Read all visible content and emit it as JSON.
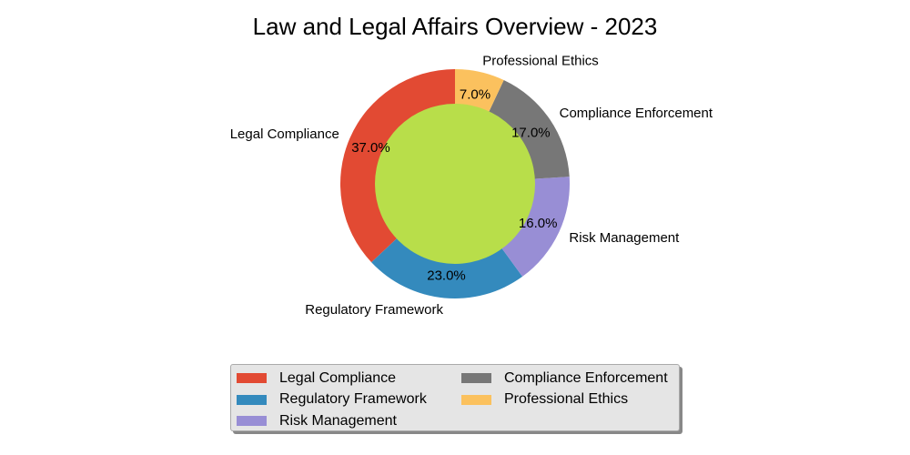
{
  "chart_data": {
    "type": "pie",
    "title": "Law and Legal Affairs Overview - 2023",
    "categories": [
      "Legal Compliance",
      "Regulatory Framework",
      "Risk Management",
      "Compliance Enforcement",
      "Professional Ethics"
    ],
    "values": [
      37.0,
      23.0,
      16.0,
      17.0,
      7.0
    ],
    "percent_labels": [
      "37.0%",
      "23.0%",
      "16.0%",
      "17.0%",
      "7.0%"
    ],
    "colors": [
      "#E24A33",
      "#348ABD",
      "#988ED5",
      "#777777",
      "#FBC15E"
    ],
    "center_color": "#B8DE4A",
    "donut": true,
    "legend_placement": "bottom-center",
    "legend_order": [
      0,
      3,
      1,
      4,
      2
    ]
  }
}
